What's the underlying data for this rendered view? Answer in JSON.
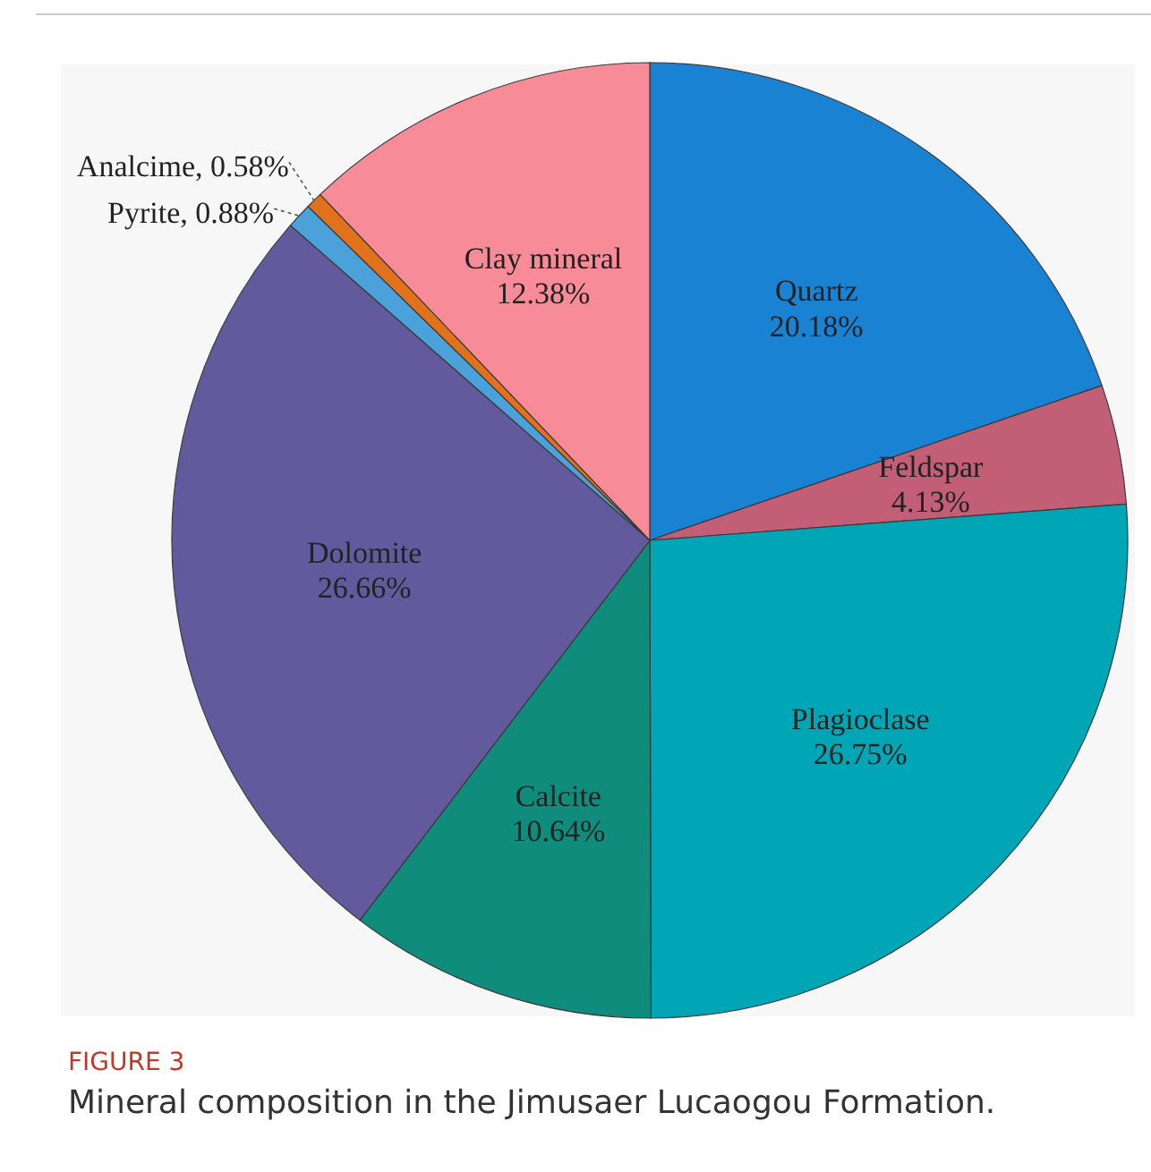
{
  "chart_data": {
    "type": "pie",
    "categories": [
      "Quartz",
      "Feldspar",
      "Plagioclase",
      "Calcite",
      "Dolomite",
      "Pyrite",
      "Analcime",
      "Clay mineral"
    ],
    "values": [
      20.18,
      4.13,
      26.75,
      10.64,
      26.66,
      0.88,
      0.58,
      12.38
    ],
    "value_labels": [
      "20.18%",
      "4.13%",
      "26.75%",
      "10.64%",
      "26.66%",
      "0.88%",
      "0.58%",
      "12.38%"
    ],
    "colors": [
      "#1a82d2",
      "#c25e76",
      "#00a6b6",
      "#0f8c7c",
      "#635a9e",
      "#4ba2da",
      "#e2711c",
      "#f78b97"
    ],
    "annotations": [
      "FIGURE 3",
      "Mineral composition in the Jimusaer Lucaogou Formation."
    ]
  }
}
